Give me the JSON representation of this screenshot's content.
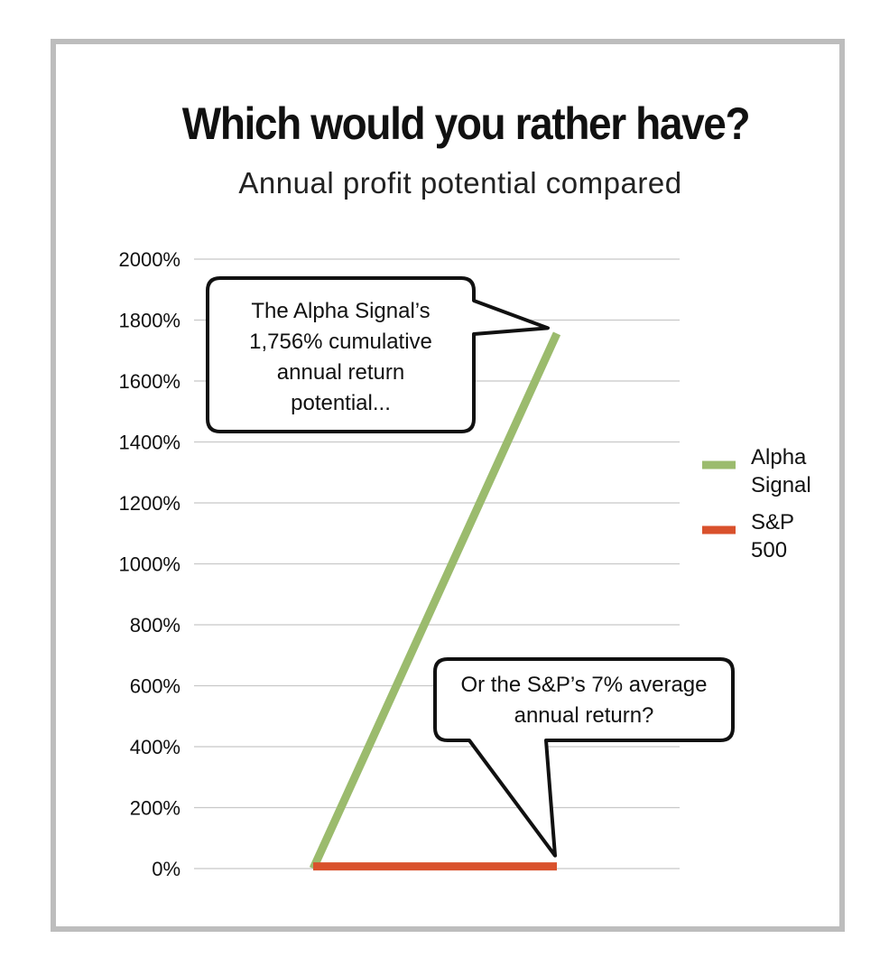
{
  "chart_data": {
    "type": "line",
    "title": "Which would you rather have?",
    "subtitle": "Annual profit potential compared",
    "ylim": [
      0,
      2000
    ],
    "yticks": [
      "0%",
      "200%",
      "400%",
      "600%",
      "800%",
      "1000%",
      "1200%",
      "1400%",
      "1600%",
      "1800%",
      "2000%"
    ],
    "grid": true,
    "legend_position": "right",
    "series": [
      {
        "name": "Alpha Signal",
        "color": "#9bbb6d",
        "points": [
          [
            0,
            0
          ],
          [
            1,
            1756
          ]
        ]
      },
      {
        "name": "S&P 500",
        "color": "#d9512c",
        "points": [
          [
            0,
            7
          ],
          [
            1,
            7
          ]
        ]
      }
    ],
    "annotations": [
      {
        "lines": [
          "The Alpha Signal’s",
          "1,756% cumulative",
          "annual return",
          "potential..."
        ],
        "target_series": "Alpha Signal"
      },
      {
        "lines": [
          "Or the S&P’s 7% average",
          "annual return?"
        ],
        "target_series": "S&P 500"
      }
    ],
    "legend": [
      {
        "lines": [
          "Alpha",
          "Signal"
        ],
        "color": "#9bbb6d"
      },
      {
        "lines": [
          "S&P",
          "500"
        ],
        "color": "#d9512c"
      }
    ]
  }
}
